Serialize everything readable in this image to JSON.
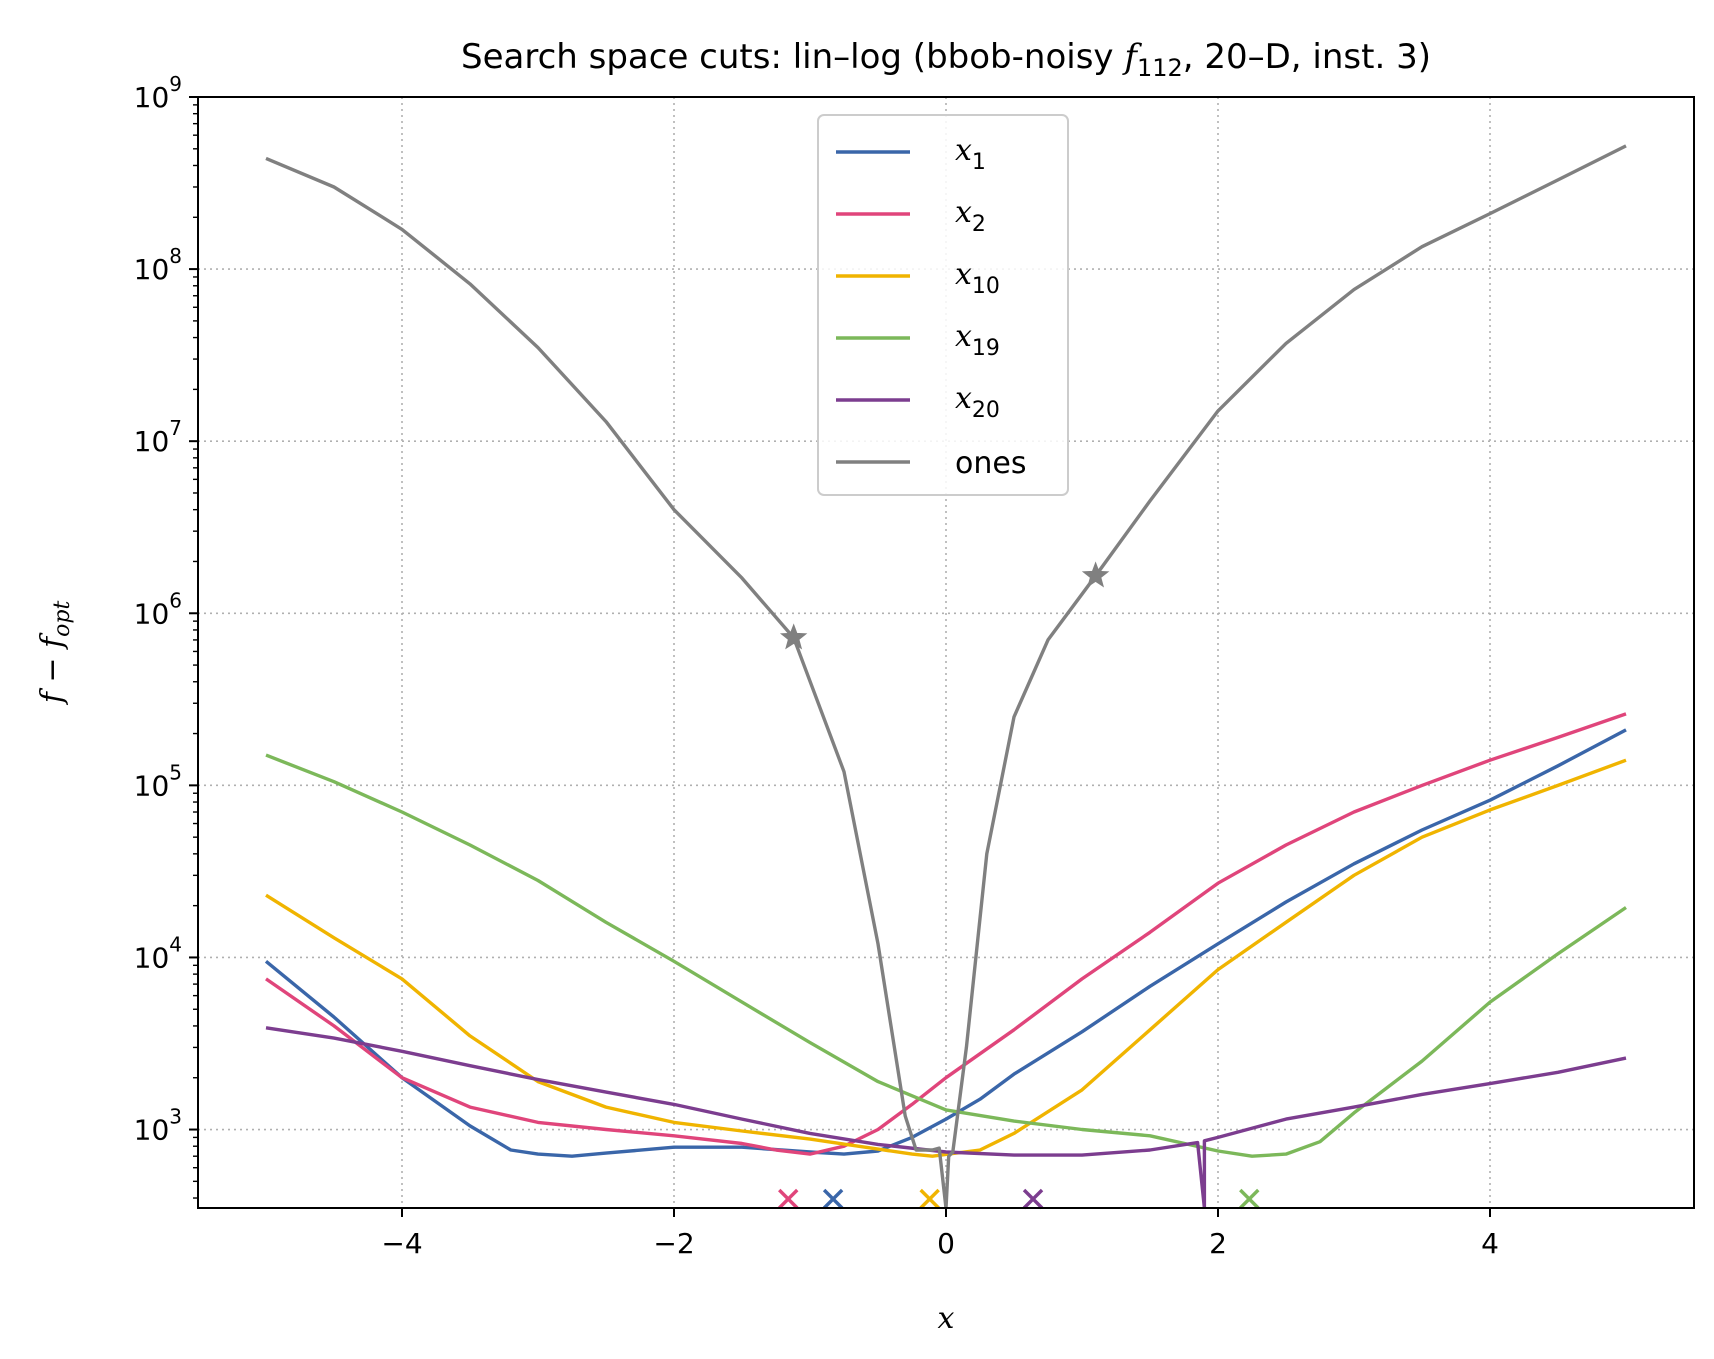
{
  "chart_data": {
    "type": "line",
    "title": "Search space cuts: lin–log (bbob-noisy f₁₁₂, 20–D, inst. 3)",
    "xlabel": "x",
    "ylabel": "f − f_opt",
    "xlim": [
      -5.5,
      5.5
    ],
    "ylim": [
      350,
      1000000000
    ],
    "yscale": "log",
    "grid": true,
    "legend_position": "top-center",
    "x_ticks": [
      {
        "value": -4,
        "label": "−4"
      },
      {
        "value": -2,
        "label": "−2"
      },
      {
        "value": 0,
        "label": "0"
      },
      {
        "value": 2,
        "label": "2"
      },
      {
        "value": 4,
        "label": "4"
      }
    ],
    "y_ticks": [
      {
        "value": 1000,
        "base": "10",
        "exp": "3"
      },
      {
        "value": 10000,
        "base": "10",
        "exp": "4"
      },
      {
        "value": 100000,
        "base": "10",
        "exp": "5"
      },
      {
        "value": 1000000,
        "base": "10",
        "exp": "6"
      },
      {
        "value": 10000000,
        "base": "10",
        "exp": "7"
      },
      {
        "value": 100000000,
        "base": "10",
        "exp": "8"
      },
      {
        "value": 1000000000,
        "base": "10",
        "exp": "9"
      }
    ],
    "series": [
      {
        "name": "x1",
        "legend_base": "x",
        "legend_sub": "1",
        "color": "#3a66a9",
        "points": [
          [
            -5,
            9500
          ],
          [
            -4.5,
            4500
          ],
          [
            -4,
            2000
          ],
          [
            -3.5,
            1050
          ],
          [
            -3.2,
            760
          ],
          [
            -3,
            720
          ],
          [
            -2.75,
            700
          ],
          [
            -2.5,
            730
          ],
          [
            -2,
            790
          ],
          [
            -1.5,
            790
          ],
          [
            -1,
            740
          ],
          [
            -0.75,
            720
          ],
          [
            -0.5,
            750
          ],
          [
            -0.25,
            900
          ],
          [
            0,
            1150
          ],
          [
            0.25,
            1500
          ],
          [
            0.5,
            2100
          ],
          [
            1,
            3700
          ],
          [
            1.5,
            6800
          ],
          [
            2,
            12000
          ],
          [
            2.5,
            21000
          ],
          [
            3,
            35000
          ],
          [
            3.5,
            55000
          ],
          [
            4,
            82000
          ],
          [
            4.5,
            130000
          ],
          [
            5,
            210000
          ]
        ],
        "marker": {
          "x": -0.83
        }
      },
      {
        "name": "x2",
        "legend_base": "x",
        "legend_sub": "2",
        "color": "#e0457b",
        "points": [
          [
            -5,
            7500
          ],
          [
            -4.5,
            4000
          ],
          [
            -4,
            2000
          ],
          [
            -3.5,
            1350
          ],
          [
            -3,
            1100
          ],
          [
            -2.5,
            1000
          ],
          [
            -2,
            920
          ],
          [
            -1.5,
            830
          ],
          [
            -1.25,
            760
          ],
          [
            -1,
            720
          ],
          [
            -0.75,
            800
          ],
          [
            -0.5,
            1000
          ],
          [
            -0.25,
            1400
          ],
          [
            0,
            2000
          ],
          [
            0.5,
            3800
          ],
          [
            1,
            7500
          ],
          [
            1.5,
            14000
          ],
          [
            2,
            27000
          ],
          [
            2.5,
            45000
          ],
          [
            3,
            70000
          ],
          [
            3.5,
            100000
          ],
          [
            4,
            140000
          ],
          [
            4.5,
            190000
          ],
          [
            5,
            260000
          ]
        ],
        "marker": {
          "x": -1.16
        }
      },
      {
        "name": "x10",
        "legend_base": "x",
        "legend_sub": "10",
        "color": "#f0b400",
        "points": [
          [
            -5,
            23000
          ],
          [
            -4.5,
            13000
          ],
          [
            -4,
            7500
          ],
          [
            -3.5,
            3500
          ],
          [
            -3,
            1900
          ],
          [
            -2.5,
            1350
          ],
          [
            -2,
            1100
          ],
          [
            -1.5,
            980
          ],
          [
            -1,
            880
          ],
          [
            -0.5,
            770
          ],
          [
            -0.25,
            720
          ],
          [
            -0.1,
            700
          ],
          [
            0.25,
            760
          ],
          [
            0.5,
            950
          ],
          [
            1,
            1700
          ],
          [
            1.5,
            3800
          ],
          [
            2,
            8500
          ],
          [
            2.5,
            16000
          ],
          [
            3,
            30000
          ],
          [
            3.5,
            50000
          ],
          [
            4,
            72000
          ],
          [
            4.5,
            100000
          ],
          [
            5,
            140000
          ]
        ],
        "marker": {
          "x": -0.12
        }
      },
      {
        "name": "x19",
        "legend_base": "x",
        "legend_sub": "19",
        "color": "#7cb85a",
        "points": [
          [
            -5,
            150000
          ],
          [
            -4.5,
            105000
          ],
          [
            -4,
            70000
          ],
          [
            -3.5,
            45000
          ],
          [
            -3,
            28000
          ],
          [
            -2.5,
            16000
          ],
          [
            -2,
            9500
          ],
          [
            -1.5,
            5500
          ],
          [
            -1,
            3200
          ],
          [
            -0.5,
            1900
          ],
          [
            0,
            1300
          ],
          [
            0.5,
            1120
          ],
          [
            1,
            1000
          ],
          [
            1.5,
            920
          ],
          [
            2,
            750
          ],
          [
            2.25,
            700
          ],
          [
            2.5,
            720
          ],
          [
            2.75,
            850
          ],
          [
            3,
            1250
          ],
          [
            3.5,
            2500
          ],
          [
            4,
            5500
          ],
          [
            4.5,
            10500
          ],
          [
            5,
            19500
          ]
        ],
        "marker": {
          "x": 2.23
        }
      },
      {
        "name": "x20",
        "legend_base": "x",
        "legend_sub": "20",
        "color": "#7c3d8f",
        "points": [
          [
            -5,
            3900
          ],
          [
            -4.5,
            3400
          ],
          [
            -4,
            2850
          ],
          [
            -3.5,
            2350
          ],
          [
            -3,
            1950
          ],
          [
            -2.5,
            1650
          ],
          [
            -2,
            1400
          ],
          [
            -1.5,
            1150
          ],
          [
            -1,
            950
          ],
          [
            -0.5,
            820
          ],
          [
            0,
            740
          ],
          [
            0.5,
            710
          ],
          [
            1,
            710
          ],
          [
            1.5,
            760
          ],
          [
            1.85,
            840
          ],
          [
            1.9,
            350
          ],
          [
            1.9,
            860
          ],
          [
            2,
            900
          ],
          [
            2.5,
            1150
          ],
          [
            3,
            1350
          ],
          [
            3.5,
            1600
          ],
          [
            4,
            1850
          ],
          [
            4.5,
            2150
          ],
          [
            5,
            2600
          ]
        ],
        "marker": {
          "x": 0.64
        }
      },
      {
        "name": "ones",
        "legend_label": "ones",
        "color": "#808080",
        "points": [
          [
            -5,
            440000000
          ],
          [
            -4.5,
            300000000
          ],
          [
            -4,
            170000000
          ],
          [
            -3.5,
            82000000
          ],
          [
            -3,
            35000000
          ],
          [
            -2.5,
            13000000
          ],
          [
            -2,
            4000000
          ],
          [
            -1.5,
            1600000
          ],
          [
            -1.12,
            720000
          ],
          [
            -0.75,
            120000
          ],
          [
            -0.5,
            12000
          ],
          [
            -0.3,
            1200
          ],
          [
            -0.22,
            760
          ],
          [
            -0.1,
            760
          ],
          [
            -0.05,
            780
          ],
          [
            0,
            350
          ],
          [
            0.02,
            700
          ],
          [
            0.05,
            740
          ],
          [
            0.15,
            3000
          ],
          [
            0.3,
            40000
          ],
          [
            0.5,
            250000
          ],
          [
            0.75,
            700000
          ],
          [
            1.1,
            1650000
          ],
          [
            1.5,
            4500000
          ],
          [
            2,
            15000000
          ],
          [
            2.5,
            37000000
          ],
          [
            3,
            76000000
          ],
          [
            3.5,
            135000000
          ],
          [
            4,
            210000000
          ],
          [
            4.5,
            330000000
          ],
          [
            5,
            520000000
          ]
        ],
        "star_points": [
          [
            -1.12,
            720000
          ],
          [
            1.1,
            1650000
          ]
        ]
      }
    ]
  }
}
